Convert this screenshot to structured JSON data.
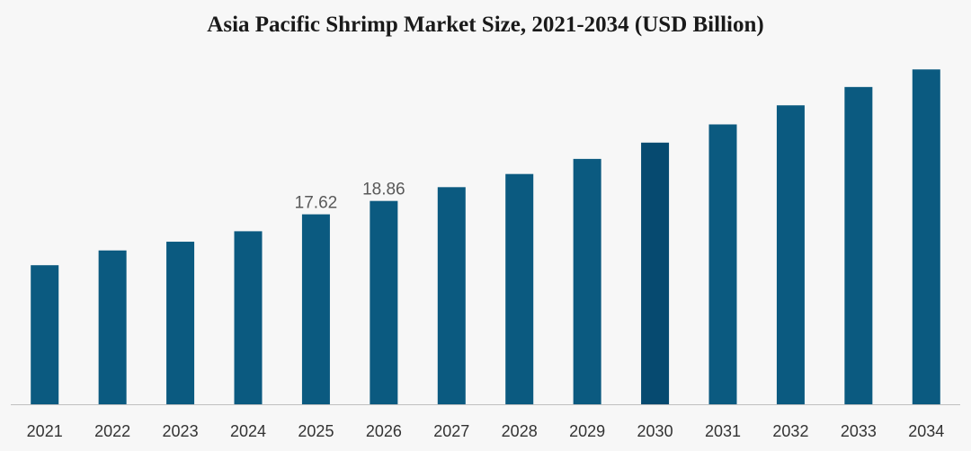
{
  "chart_data": {
    "type": "bar",
    "title": "Asia Pacific Shrimp Market Size, 2021-2034 (USD Billion)",
    "xlabel": "",
    "ylabel": "",
    "categories": [
      "2021",
      "2022",
      "2023",
      "2024",
      "2025",
      "2026",
      "2027",
      "2028",
      "2029",
      "2030",
      "2031",
      "2032",
      "2033",
      "2034"
    ],
    "series": [
      {
        "values": [
          12.9,
          14.27,
          15.08,
          16.05,
          17.62,
          18.86,
          20.14,
          21.36,
          22.76,
          24.27,
          25.96,
          27.73,
          29.43,
          31.06
        ],
        "colors": [
          "#0b5a80",
          "#0b5a80",
          "#0b5a80",
          "#0b5a80",
          "#0b5a80",
          "#0b5a80",
          "#0b5a80",
          "#0b5a80",
          "#0b5a80",
          "#064a70",
          "#0b5a80",
          "#0b5a80",
          "#0b5a80",
          "#0b5a80"
        ]
      }
    ],
    "data_labels": [
      {
        "category": "2025",
        "text": "17.62"
      },
      {
        "category": "2026",
        "text": "18.86"
      }
    ],
    "ylim": [
      0,
      33.5
    ],
    "grid": false,
    "legend": "none",
    "baseline_color": "#bfbfbf",
    "label_color": "#595959",
    "tick_color": "#333333"
  }
}
